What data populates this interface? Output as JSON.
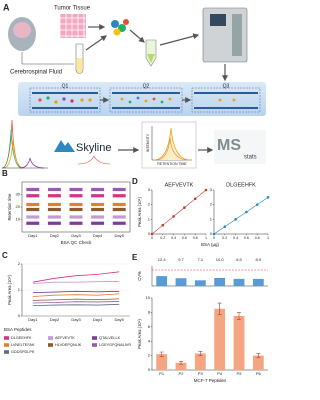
{
  "diagram": {
    "label": "A",
    "tumor": "Tumor Tissue",
    "csf": "Cerebrospinal Fluid",
    "steps": [
      "Q1",
      "Q2",
      "Q3"
    ],
    "skyline": "Skyline",
    "intensity": "INTENSITY",
    "retention": "RETENTION TIME",
    "msstats_ms": "MS",
    "msstats_stats": "stats"
  },
  "chart_data": [
    {
      "type": "strip",
      "label": "B",
      "y_label": "Retention time",
      "x_label": "BSA QC Check",
      "categories": [
        "Day1",
        "Day2",
        "Day3",
        "Day4",
        "Day5"
      ],
      "ylim": [
        0,
        40
      ],
      "yticks": [
        10,
        20,
        30
      ],
      "series": [
        {
          "color": "#9b59b6",
          "values": [
            34,
            34,
            34,
            34,
            34
          ]
        },
        {
          "color": "#d63384",
          "values": [
            29,
            29,
            29,
            29,
            29
          ]
        },
        {
          "color": "#e67e22",
          "values": [
            22,
            22,
            22,
            22,
            22
          ]
        },
        {
          "color": "#8e5a2b",
          "values": [
            18,
            18,
            18,
            18,
            18
          ]
        },
        {
          "color": "#c39bd3",
          "values": [
            12,
            12,
            12,
            12,
            12
          ]
        },
        {
          "color": "#7d3c98",
          "values": [
            7,
            7,
            7,
            7,
            7
          ]
        }
      ]
    },
    {
      "type": "line",
      "label": "C",
      "y_label": "Peak Area (10⁸)",
      "legend_title": "BSA Peptides",
      "categories": [
        "Day1",
        "Day2",
        "Day3",
        "Day4",
        "Day5"
      ],
      "ylim": [
        0,
        2
      ],
      "yticks": [
        0,
        1,
        2
      ],
      "grid": true,
      "series": [
        {
          "name": "DLGEEHFK",
          "color": "#d63384",
          "values": [
            1.3,
            1.45,
            1.55,
            1.6,
            1.7
          ]
        },
        {
          "name": "AEFVEVTK",
          "color": "#c39bd3",
          "values": [
            1.25,
            1.3,
            1.3,
            1.32,
            1.33
          ]
        },
        {
          "name": "QTALVELLK",
          "color": "#7d3c98",
          "values": [
            0.9,
            0.92,
            0.95,
            0.93,
            0.95
          ]
        },
        {
          "name": "LVNELTEFAK",
          "color": "#e67e22",
          "values": [
            0.75,
            0.8,
            0.82,
            0.8,
            0.85
          ]
        },
        {
          "name": "HLVDEPQNLIK",
          "color": "#8e5a2b",
          "values": [
            0.6,
            0.62,
            0.65,
            0.63,
            0.66
          ]
        },
        {
          "name": "LGEYGFQNALIVR",
          "color": "#9b59b6",
          "values": [
            0.5,
            0.52,
            0.55,
            0.54,
            0.56
          ]
        },
        {
          "name": "GDDSPDLPK",
          "color": "#5d6d7e",
          "values": [
            0.4,
            0.42,
            0.43,
            0.42,
            0.45
          ]
        }
      ]
    },
    {
      "type": "scatter",
      "label": "D",
      "title": "AEFVEVTK",
      "x_label": "BSA (µg)",
      "y_label": "Peak Area (10⁸)",
      "x": [
        0,
        0.2,
        0.4,
        0.6,
        0.8,
        1
      ],
      "values": [
        0,
        0.6,
        1.2,
        1.8,
        2.4,
        3
      ],
      "xlim": [
        0,
        1
      ],
      "xticks": [
        0,
        0.2,
        0.4,
        0.6,
        0.8,
        1
      ],
      "ylim": [
        0,
        3
      ],
      "yticks": [
        0,
        1,
        2,
        3
      ],
      "color": "#c0392b"
    },
    {
      "type": "scatter",
      "title": "DLGEEHFK",
      "x": [
        0,
        0.2,
        0.4,
        0.6,
        0.8,
        1
      ],
      "values": [
        0,
        0.5,
        1,
        1.5,
        2,
        2.5
      ],
      "xlim": [
        0,
        1
      ],
      "xticks": [
        0,
        0.2,
        0.4,
        0.6,
        0.8,
        1
      ],
      "ylim": [
        0,
        3
      ],
      "yticks": [
        0,
        1,
        2,
        3
      ],
      "color": "#2e86c1"
    },
    {
      "type": "bar",
      "label": "E",
      "y_label": "CV%",
      "values": [
        12.4,
        9.7,
        7.1,
        10.0,
        8.9,
        8.9
      ],
      "value_labels": [
        "12.4",
        "9.7",
        "7.1",
        "10.0",
        "8.9",
        "8.9"
      ],
      "ylim": [
        0,
        25
      ],
      "threshold": 20,
      "threshold_color": "#e03030",
      "color": "#5b9bd5"
    },
    {
      "type": "bar",
      "y_label": "Peak Area (10⁶)",
      "x_label": "MCF-7 Peptides",
      "categories": [
        "P1",
        "P2",
        "P3",
        "P4",
        "P5",
        "P6"
      ],
      "values": [
        2.2,
        1.0,
        2.3,
        8.5,
        7.5,
        2.0
      ],
      "errors": [
        0.3,
        0.2,
        0.3,
        0.8,
        0.5,
        0.3
      ],
      "ylim": [
        0,
        10
      ],
      "yticks": [
        0,
        2,
        4,
        6,
        8,
        10
      ],
      "color": "#f4a582",
      "error_color": "#c0392b"
    }
  ]
}
